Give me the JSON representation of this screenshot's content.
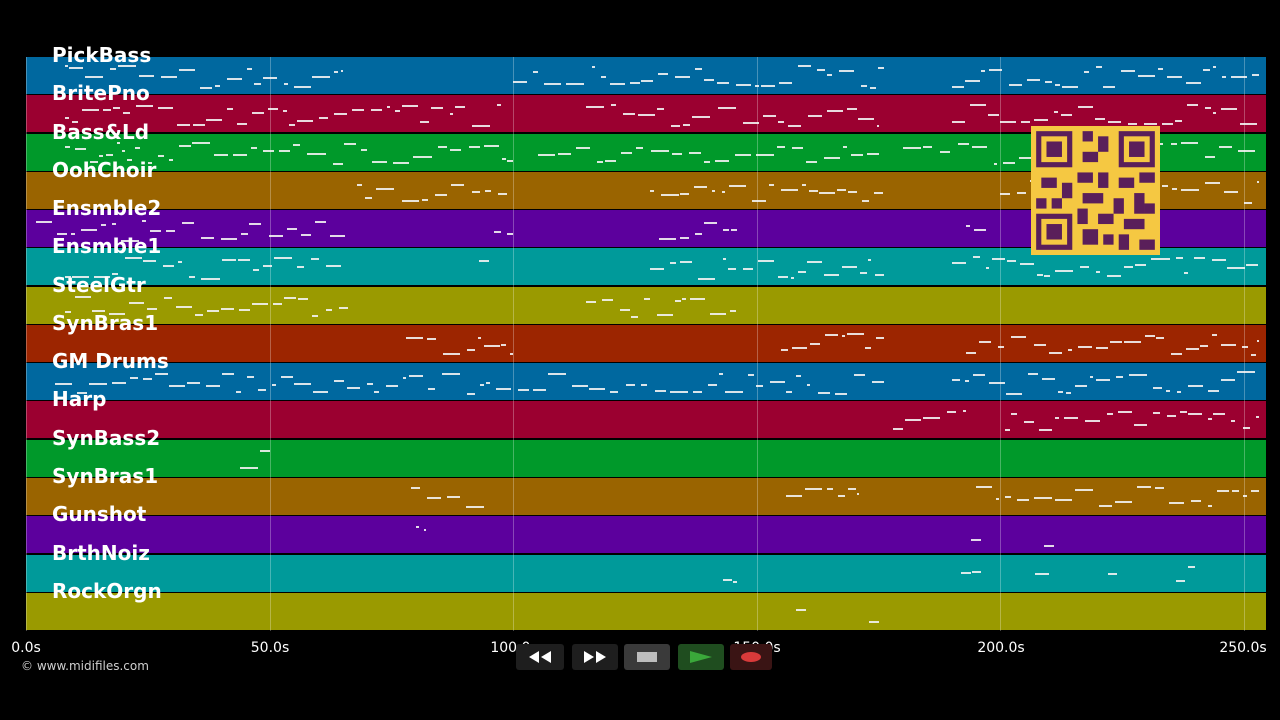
{
  "tracks": [
    {
      "name": "PickBass",
      "color": "#00689f"
    },
    {
      "name": "BritePno",
      "color": "#9b0030"
    },
    {
      "name": "Bass&Ld",
      "color": "#00992a"
    },
    {
      "name": "OohChoir",
      "color": "#9a6400"
    },
    {
      "name": "Ensmble2",
      "color": "#5c009d"
    },
    {
      "name": "Ensmble1",
      "color": "#009a9a"
    },
    {
      "name": "SteelGtr",
      "color": "#9a9a00"
    },
    {
      "name": "SynBras1",
      "color": "#9c2500"
    },
    {
      "name": "GM Drums",
      "color": "#00689f"
    },
    {
      "name": "Harp",
      "color": "#9b0030"
    },
    {
      "name": "SynBass2",
      "color": "#00992a"
    },
    {
      "name": "SynBras1",
      "color": "#9a6400"
    },
    {
      "name": "Gunshot",
      "color": "#5c009d"
    },
    {
      "name": "BrthNoiz",
      "color": "#009a9a"
    },
    {
      "name": "RockOrgn",
      "color": "#9a9a00"
    }
  ],
  "timeline": {
    "ticks": [
      "0.0s",
      "50.0s",
      "100.0s",
      "150.0s",
      "200.0s",
      "250.0s"
    ],
    "tick_seconds": [
      0,
      50,
      100,
      150,
      200,
      250
    ],
    "max_seconds": 254.5
  },
  "credit": "© www.midifiles.com",
  "transport": {
    "rewind_icon": "rewind-icon",
    "fast_forward_icon": "fast-forward-icon",
    "stop_icon": "stop-icon",
    "play_icon": "play-icon",
    "record_icon": "record-icon",
    "play_color": "#3aa83a",
    "record_color": "#d83a3a"
  }
}
